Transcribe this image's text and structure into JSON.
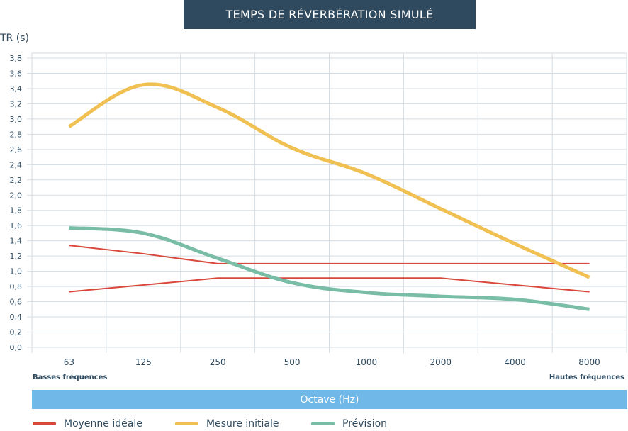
{
  "chart_data": {
    "type": "line",
    "title": "TEMPS DE RÉVERBÉRATION SIMULÉ",
    "ylabel": "TR (s)",
    "xlabel": "Octave (Hz)",
    "x_low_label": "Basses fréquences",
    "x_high_label": "Hautes fréquences",
    "categories": [
      "63",
      "125",
      "250",
      "500",
      "1000",
      "2000",
      "4000",
      "8000"
    ],
    "ylim": [
      0,
      3.8
    ],
    "yticks": [
      "0,0",
      "0,2",
      "0,4",
      "0,6",
      "0,8",
      "1,0",
      "1,2",
      "1,4",
      "1,6",
      "1,8",
      "2,0",
      "2,2",
      "2,4",
      "2,6",
      "2,8",
      "3,0",
      "3,2",
      "3,4",
      "3,6",
      "3,8"
    ],
    "ideal_upper": [
      1.34,
      1.23,
      1.1,
      1.1,
      1.1,
      1.1,
      1.1,
      1.1
    ],
    "ideal_lower": [
      0.73,
      0.82,
      0.91,
      0.91,
      0.91,
      0.91,
      0.82,
      0.73
    ],
    "series": [
      {
        "name": "Mesure initiale",
        "values": [
          2.9,
          3.45,
          3.15,
          2.62,
          2.28,
          1.82,
          1.36,
          0.92
        ]
      },
      {
        "name": "Prévision",
        "values": [
          1.57,
          1.5,
          1.17,
          0.85,
          0.72,
          0.67,
          0.63,
          0.5
        ]
      }
    ],
    "legend": [
      {
        "label": "Moyenne idéale",
        "color": "#d9483b"
      },
      {
        "label": "Mesure initiale",
        "color": "#f0c052"
      },
      {
        "label": "Prévision",
        "color": "#79bda6"
      }
    ],
    "colors": {
      "ideal": "#d9483b",
      "initial": "#f0c052",
      "forecast": "#79bda6",
      "grid": "#d5dde3",
      "title_bg": "#2f4a5e",
      "xbar_bg": "#6fb8e8"
    }
  }
}
